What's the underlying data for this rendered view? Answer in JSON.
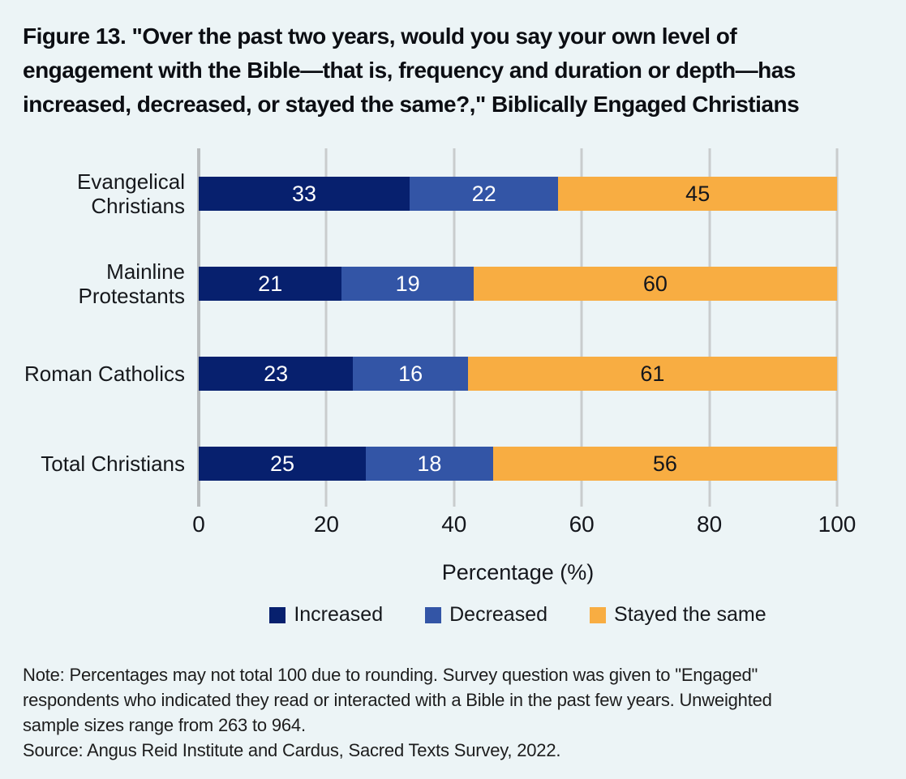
{
  "figure": {
    "title_lines": [
      "Figure 13. \"Over the past two years, would you say your own level of",
      "engagement with the Bible—that is, frequency and duration or depth—has",
      "increased, decreased, or stayed the same?,\" Biblically Engaged Christians"
    ],
    "note_lines": [
      "Note: Percentages may not total 100 due to rounding. Survey question was given to \"Engaged\"",
      "respondents who indicated they read or interacted with a Bible in the past few years. Unweighted",
      "sample sizes range from 263 to 964."
    ],
    "source": "Source: Angus Reid Institute and Cardus, Sacred Texts Survey, 2022."
  },
  "chart_data": {
    "type": "bar",
    "orientation": "horizontal",
    "stacked": true,
    "categories": [
      "Evangelical Christians",
      "Mainline Protestants",
      "Roman Catholics",
      "Total Christians"
    ],
    "series": [
      {
        "name": "Increased",
        "color": "#07206e",
        "label_color": "#ffffff",
        "values": [
          33,
          21,
          23,
          25
        ]
      },
      {
        "name": "Decreased",
        "color": "#3355a6",
        "label_color": "#ffffff",
        "values": [
          22,
          19,
          16,
          18
        ]
      },
      {
        "name": "Stayed the same",
        "color": "#f8ad42",
        "label_color": "#14161c",
        "values": [
          45,
          60,
          61,
          56
        ]
      }
    ],
    "xlabel": "Percentage (%)",
    "xticks": [
      0,
      20,
      40,
      60,
      80,
      100
    ],
    "xlim": [
      0,
      100
    ],
    "grid": true,
    "legend_position": "bottom",
    "value_labels": "inside"
  },
  "colors": {
    "background": "#ecf4f6",
    "gridline": "#c9cccd",
    "axis_line": "#b8bcbe",
    "title_text": "#0c0e13",
    "body_text": "#1d1d1d"
  }
}
